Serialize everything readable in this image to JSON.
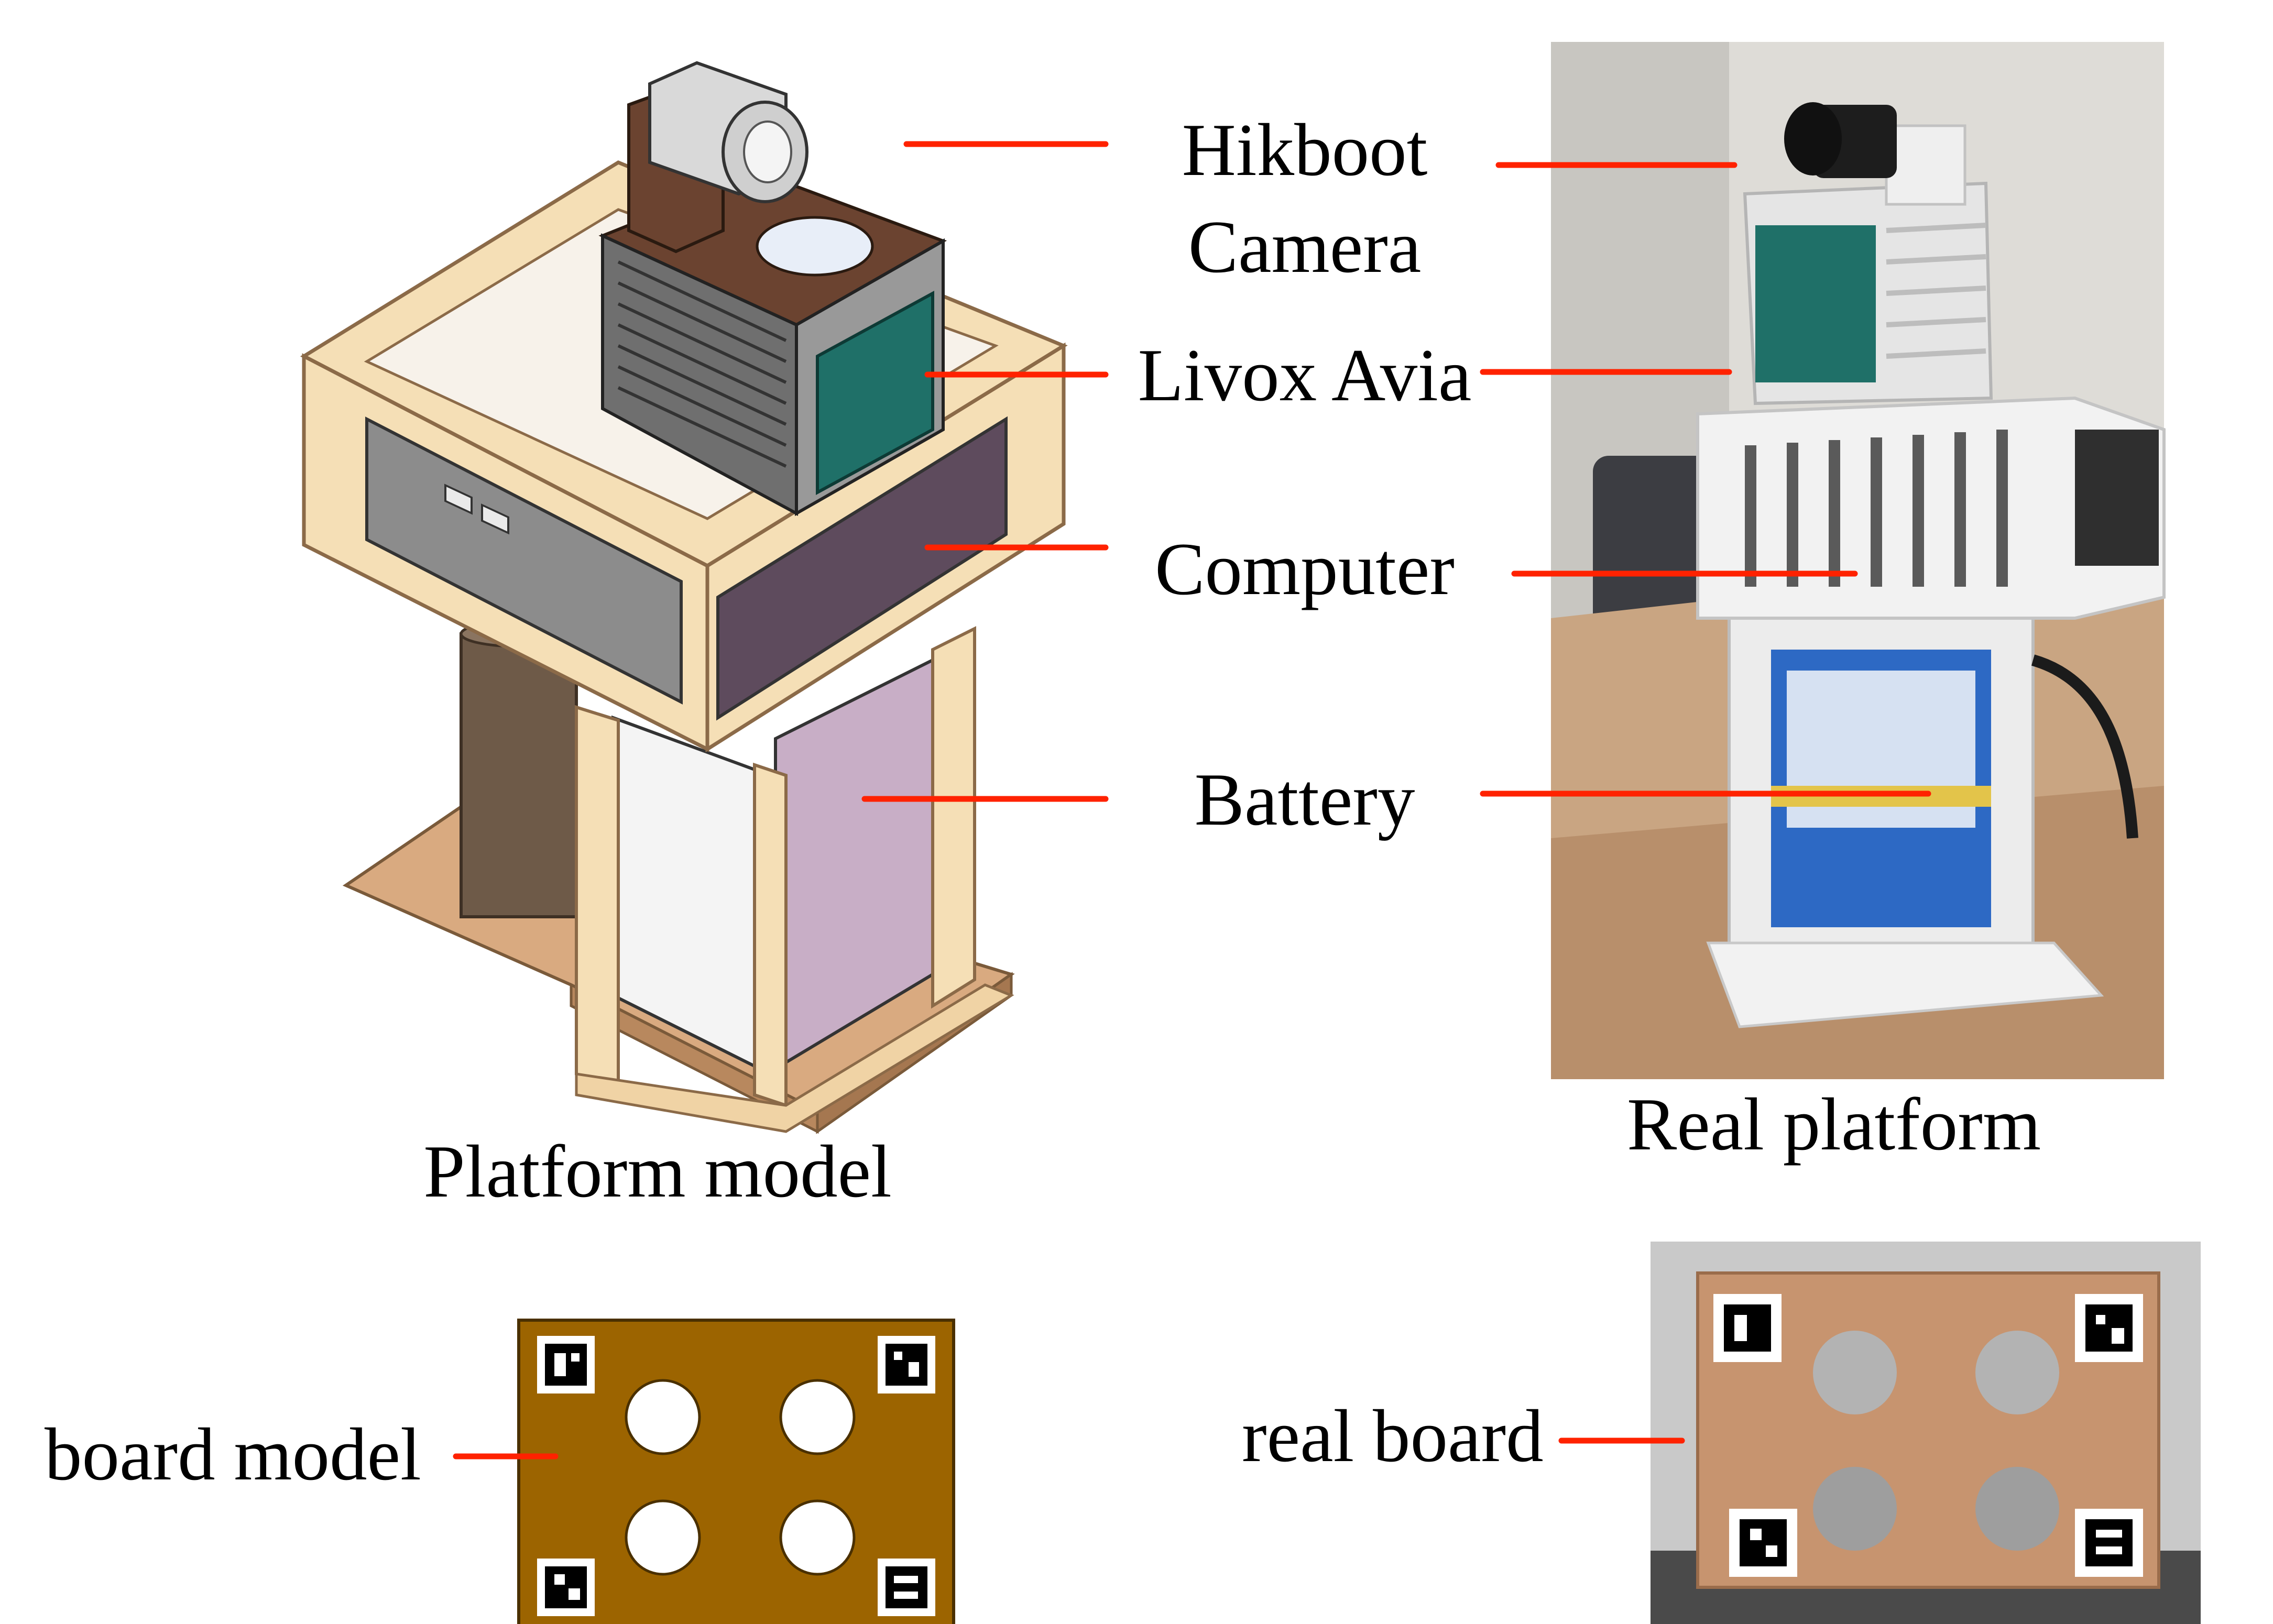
{
  "labels": {
    "hikboot_line1": "Hikboot",
    "hikboot_line2": "Camera",
    "livox": "Livox Avia",
    "computer": "Computer",
    "battery": "Battery",
    "platform_model": "Platform model",
    "real_platform": "Real platform",
    "board_model": "board model",
    "real_board": "real board"
  },
  "colors": {
    "leader": "#ff2200",
    "frame_cream": "#f5dfb6",
    "frame_edge": "#b89469",
    "box_mauve": "#5e4b5d",
    "board_brown": "#9c6400",
    "board_edge": "#4a3000",
    "lidar_teal": "#1f7068",
    "camera_brown": "#6b4330",
    "plywood": "#c7946f",
    "battery_blue": "#2d69c4",
    "printed_white": "#f2f2f2"
  }
}
